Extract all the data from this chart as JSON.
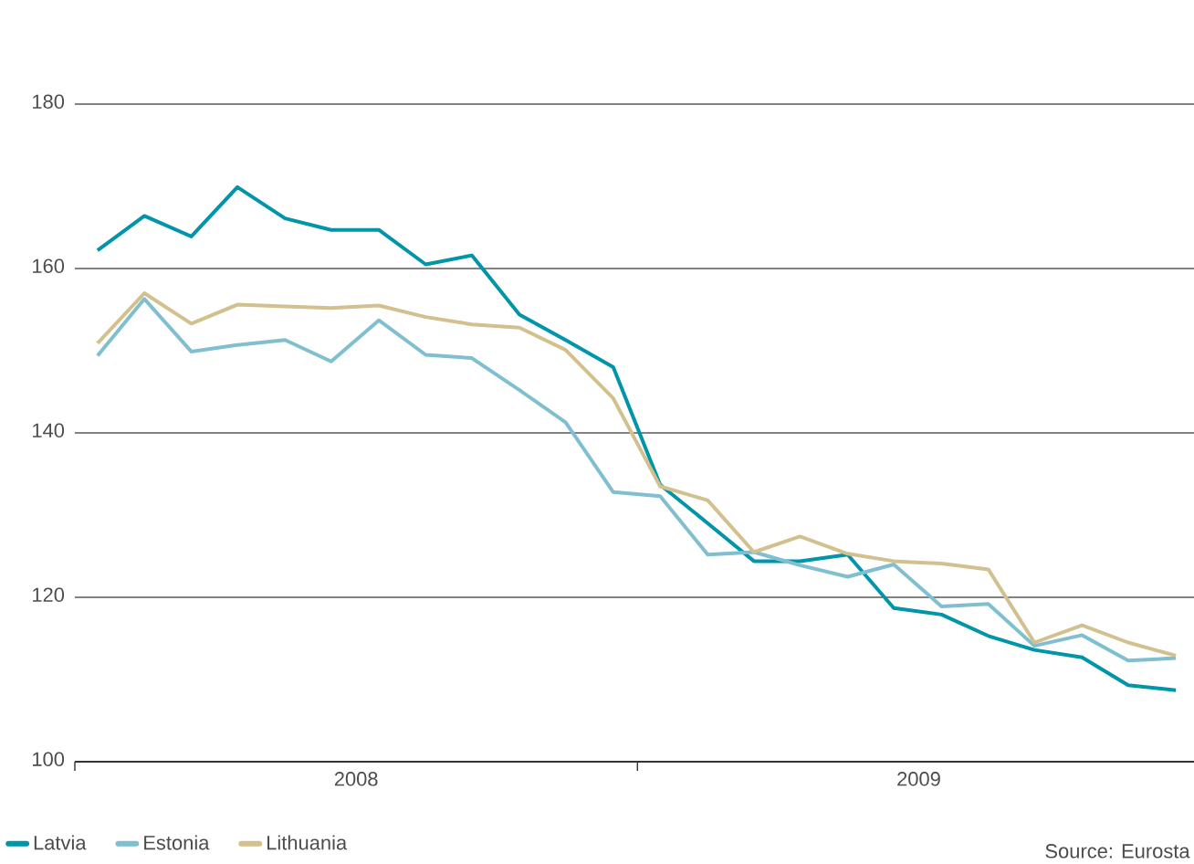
{
  "chart_data": {
    "type": "line",
    "x": [
      "2008-01-16",
      "2008-02-15",
      "2008-03-16",
      "2008-04-15",
      "2008-05-16",
      "2008-06-15",
      "2008-07-16",
      "2008-08-16",
      "2008-09-15",
      "2008-10-16",
      "2008-11-15",
      "2008-12-16",
      "2009-01-16",
      "2009-02-15",
      "2009-03-16",
      "2009-04-15",
      "2009-05-16",
      "2009-06-15",
      "2009-07-16",
      "2009-08-16",
      "2009-09-15",
      "2009-10-16",
      "2009-11-15",
      "2009-12-16"
    ],
    "series": [
      {
        "name": "Latvia",
        "color": "#0095a8",
        "values": [
          162.2,
          166.4,
          163.9,
          169.9,
          166.1,
          164.7,
          164.7,
          160.5,
          161.6,
          154.4,
          151.3,
          148.0,
          133.7,
          129.0,
          124.4,
          124.4,
          125.2,
          118.7,
          117.9,
          115.3,
          113.6,
          112.7,
          109.3,
          108.7
        ]
      },
      {
        "name": "Estonia",
        "color": "#7fbfcf",
        "values": [
          149.4,
          156.3,
          149.9,
          150.7,
          151.3,
          148.7,
          153.7,
          149.5,
          149.1,
          145.2,
          141.3,
          132.8,
          132.3,
          125.2,
          125.5,
          123.9,
          122.5,
          124.0,
          118.9,
          119.2,
          114.1,
          115.4,
          112.3,
          112.6
        ]
      },
      {
        "name": "Lithuania",
        "color": "#d2c08e",
        "values": [
          150.9,
          157.0,
          153.3,
          155.6,
          155.4,
          155.2,
          155.5,
          154.1,
          153.2,
          152.8,
          150.1,
          144.2,
          133.5,
          131.8,
          125.5,
          127.4,
          125.3,
          124.4,
          124.1,
          123.4,
          114.5,
          116.6,
          114.5,
          112.9
        ]
      }
    ],
    "xlim": [
      "2008-01-01",
      "2009-12-28"
    ],
    "xticks": [
      {
        "value": "2008-01-01",
        "label": null
      },
      {
        "value": "2008-07-01",
        "label": "2008"
      },
      {
        "value": "2009-01-01",
        "label": null
      },
      {
        "value": "2009-07-01",
        "label": "2009"
      }
    ],
    "ylim": [
      100,
      180
    ],
    "yticks": [
      100,
      120,
      140,
      160,
      180
    ],
    "grid": "y",
    "legend": "bottom left",
    "marker": "none",
    "line_style": "solid",
    "annotations": [
      "Source: Eurosta"
    ]
  }
}
